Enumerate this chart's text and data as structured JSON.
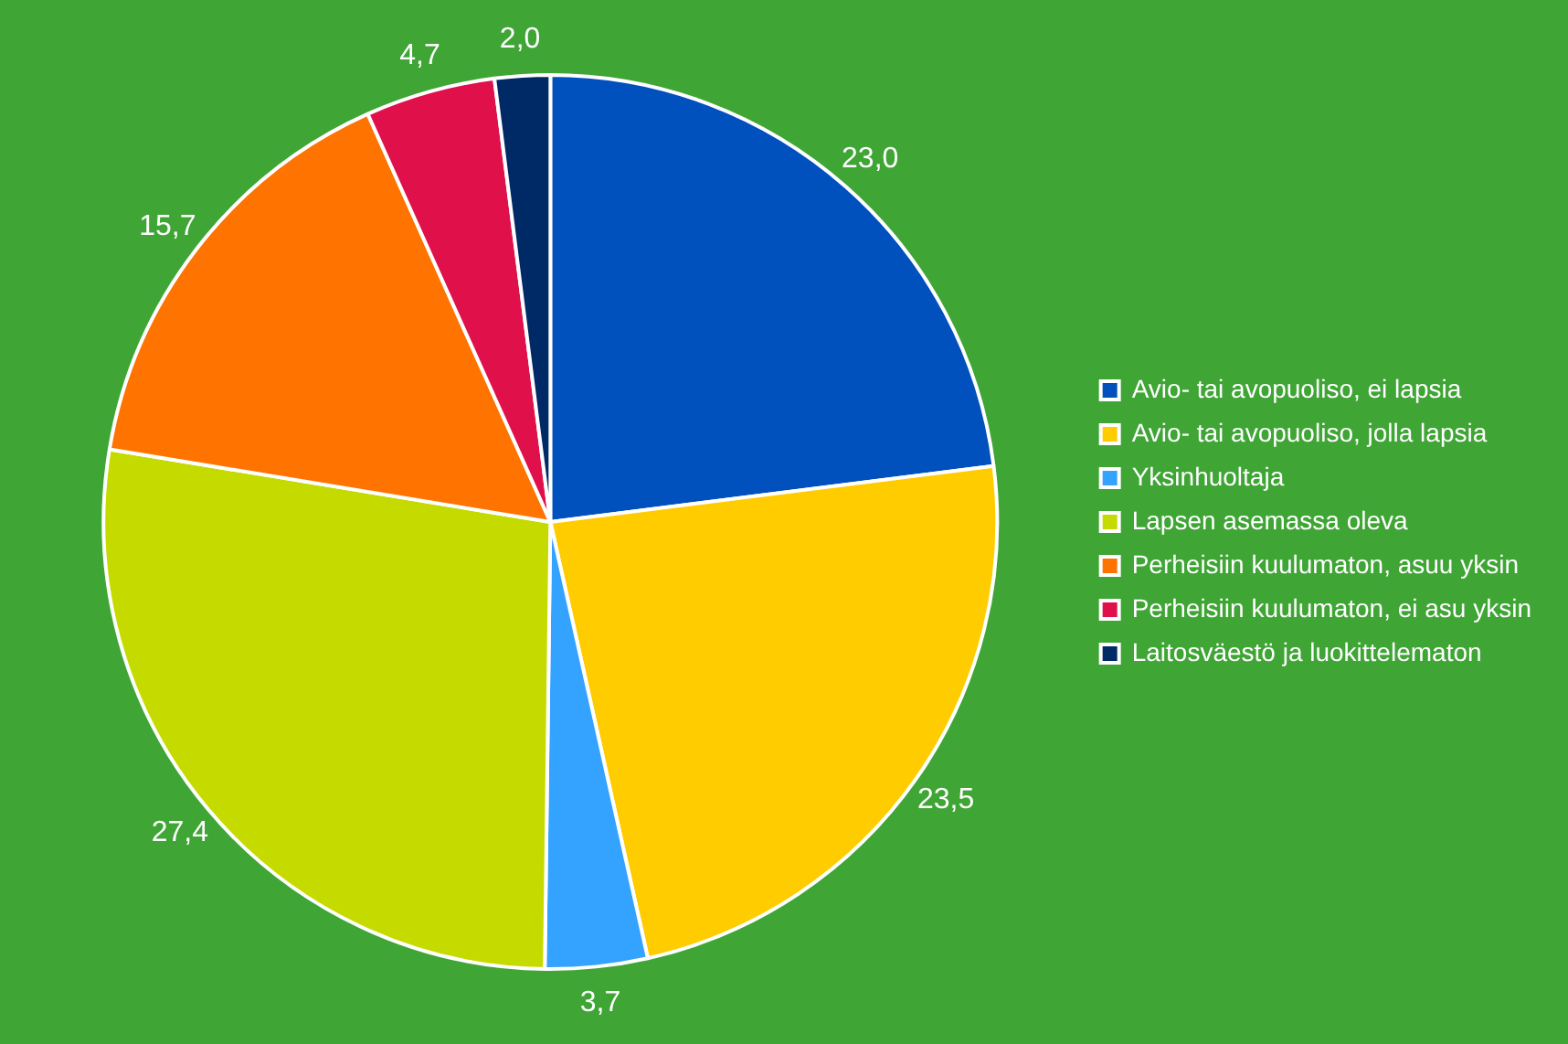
{
  "chart_data": {
    "type": "pie",
    "categories": [
      "Avio- tai avopuoliso, ei lapsia",
      "Avio- tai avopuoliso, jolla lapsia",
      "Yksinhuoltaja",
      "Lapsen asemassa oleva",
      "Perheisiin kuulumaton, asuu yksin",
      "Perheisiin kuulumaton, ei asu yksin",
      "Laitosväestö ja luokittelematon"
    ],
    "values": [
      23.0,
      23.5,
      3.7,
      27.4,
      15.7,
      4.7,
      2.0
    ],
    "value_labels": [
      "23,0",
      "23,5",
      "3,7",
      "27,4",
      "15,7",
      "4,7",
      "2,0"
    ],
    "colors": [
      "#0050be",
      "#ffcc00",
      "#33a3ff",
      "#c5db00",
      "#ff7300",
      "#e0104a",
      "#002a66"
    ],
    "legend": "right"
  }
}
